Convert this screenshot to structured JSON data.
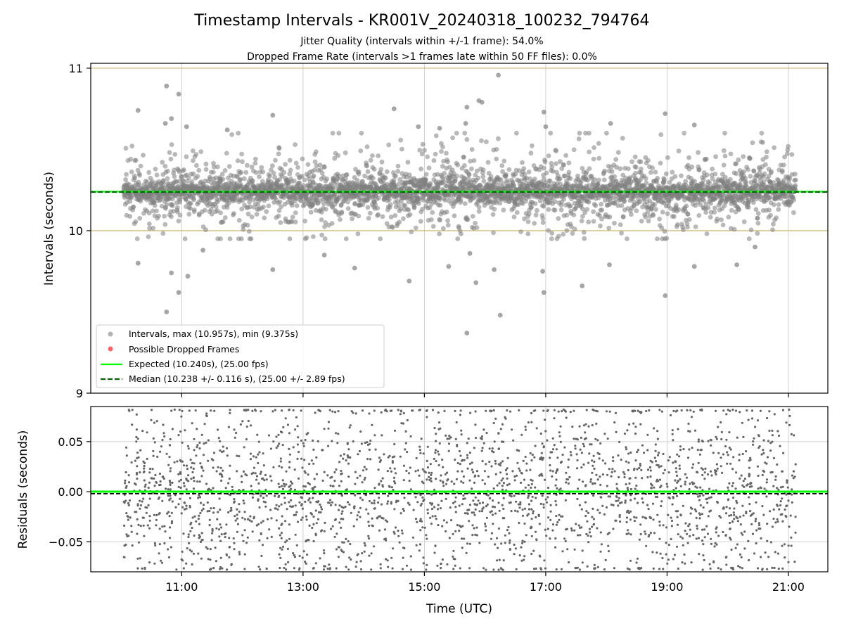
{
  "figure": {
    "title": "Timestamp Intervals - KR001V_20240318_100232_794764",
    "subtitle_1": "Jitter Quality (intervals within +/-1 frame): 54.0%",
    "subtitle_2": "Dropped Frame Rate (intervals >1 frames late within 50 FF files): 0.0%"
  },
  "colors": {
    "points": "#808080",
    "dropped": "#ff0000",
    "expected": "#00ff00",
    "median": "#006400",
    "limits": "#c8b46e",
    "grid": "#cfcfcf",
    "frame": "#000000"
  },
  "chart_data": [
    {
      "type": "scatter",
      "panel": "top",
      "xlabel": "",
      "ylabel": "Intervals (seconds)",
      "x_unit": "hours UTC",
      "xlim": [
        9.5,
        21.65
      ],
      "ylim": [
        9,
        11.03
      ],
      "x_ticks": [
        11,
        13,
        15,
        17,
        19,
        21
      ],
      "y_ticks": [
        9,
        10,
        11
      ],
      "y_tick_labels": [
        "9",
        "10",
        "11"
      ],
      "grid": "vertical",
      "legend_position": "lower-left",
      "hlines": [
        {
          "name": "upper-limit",
          "y": 11.0,
          "style": "solid"
        },
        {
          "name": "lower-limit",
          "y": 10.0,
          "style": "solid"
        },
        {
          "name": "Expected (10.240s), (25.00 fps)",
          "y": 10.24,
          "style": "solid"
        },
        {
          "name": "Median (10.238 +/- 0.116 s), (25.00 +/- 2.89 fps)",
          "y": 10.238,
          "style": "dashed"
        }
      ],
      "series": [
        {
          "name": "Intervals, max (10.957s), min (9.375s)",
          "marker": "circle",
          "count_points": 3800,
          "x_range": [
            10.04,
            21.12
          ],
          "center": 10.24,
          "spread": 0.116,
          "max": 10.957,
          "min": 9.375
        },
        {
          "name": "Possible Dropped Frames",
          "marker": "circle",
          "count_points": 0
        }
      ],
      "outliers": [
        {
          "x": 10.75,
          "y": 10.89
        },
        {
          "x": 10.95,
          "y": 10.84
        },
        {
          "x": 10.28,
          "y": 10.74
        },
        {
          "x": 16.22,
          "y": 10.957
        },
        {
          "x": 15.9,
          "y": 10.8
        },
        {
          "x": 15.7,
          "y": 10.76
        },
        {
          "x": 14.5,
          "y": 10.75
        },
        {
          "x": 16.97,
          "y": 10.73
        },
        {
          "x": 18.97,
          "y": 10.72
        },
        {
          "x": 12.5,
          "y": 10.71
        },
        {
          "x": 10.83,
          "y": 10.69
        },
        {
          "x": 10.73,
          "y": 10.66
        },
        {
          "x": 15.68,
          "y": 10.66
        },
        {
          "x": 19.45,
          "y": 10.65
        },
        {
          "x": 18.07,
          "y": 10.66
        },
        {
          "x": 11.08,
          "y": 10.64
        },
        {
          "x": 11.75,
          "y": 10.62
        },
        {
          "x": 17.0,
          "y": 10.64
        },
        {
          "x": 15.95,
          "y": 10.79
        },
        {
          "x": 10.28,
          "y": 9.8
        },
        {
          "x": 10.75,
          "y": 9.5
        },
        {
          "x": 10.83,
          "y": 9.74
        },
        {
          "x": 11.1,
          "y": 9.72
        },
        {
          "x": 10.95,
          "y": 9.62
        },
        {
          "x": 12.5,
          "y": 9.76
        },
        {
          "x": 13.85,
          "y": 9.77
        },
        {
          "x": 14.75,
          "y": 9.69
        },
        {
          "x": 15.4,
          "y": 9.78
        },
        {
          "x": 15.7,
          "y": 9.37
        },
        {
          "x": 15.85,
          "y": 9.68
        },
        {
          "x": 16.25,
          "y": 9.48
        },
        {
          "x": 16.15,
          "y": 9.76
        },
        {
          "x": 16.95,
          "y": 9.75
        },
        {
          "x": 16.97,
          "y": 9.62
        },
        {
          "x": 17.6,
          "y": 9.66
        },
        {
          "x": 18.05,
          "y": 9.79
        },
        {
          "x": 18.97,
          "y": 9.6
        },
        {
          "x": 19.45,
          "y": 9.78
        },
        {
          "x": 20.15,
          "y": 9.79
        },
        {
          "x": 15.25,
          "y": 10.63
        },
        {
          "x": 14.9,
          "y": 10.64
        },
        {
          "x": 15.75,
          "y": 9.86
        },
        {
          "x": 13.35,
          "y": 9.85
        },
        {
          "x": 11.35,
          "y": 9.88
        },
        {
          "x": 20.45,
          "y": 9.9
        }
      ]
    },
    {
      "type": "scatter",
      "panel": "bottom",
      "xlabel": "Time (UTC)",
      "ylabel": "Residuals (seconds)",
      "x_unit": "hours UTC",
      "xlim": [
        9.5,
        21.65
      ],
      "ylim": [
        -0.08,
        0.085
      ],
      "x_ticks": [
        11,
        13,
        15,
        17,
        19,
        21
      ],
      "x_tick_labels": [
        "11:00",
        "13:00",
        "15:00",
        "17:00",
        "19:00",
        "21:00"
      ],
      "y_ticks": [
        -0.05,
        0.0,
        0.05
      ],
      "y_tick_labels": [
        "−0.05",
        "0.00",
        "0.05"
      ],
      "grid": "both",
      "hlines": [
        {
          "name": "Expected",
          "y": 0.0,
          "style": "solid"
        },
        {
          "name": "Median",
          "y": -0.002,
          "style": "dashed"
        }
      ],
      "series": [
        {
          "name": "",
          "marker": "point",
          "count_points": 2500,
          "x_range": [
            10.04,
            21.12
          ],
          "center": 0.0,
          "spread": 0.045,
          "clipped_to_ylim": true
        }
      ]
    }
  ],
  "legend": {
    "intervals": "Intervals, max (10.957s), min (9.375s)",
    "dropped": "Possible Dropped Frames",
    "expected": "Expected (10.240s), (25.00 fps)",
    "median": "Median (10.238 +/- 0.116 s), (25.00 +/- 2.89 fps)"
  }
}
